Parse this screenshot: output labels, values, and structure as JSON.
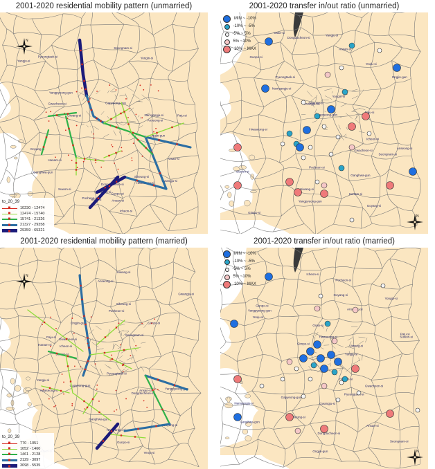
{
  "panels": {
    "tl": {
      "title": "2001-2020 residential mobility pattern (unmarried)",
      "legend": {
        "title": "to_20_39",
        "items": [
          {
            "label": "10230 - 12474",
            "color": "#d52a1f",
            "width": 1
          },
          {
            "label": "12474 - 15740",
            "color": "#8fdc3a",
            "width": 1.5
          },
          {
            "label": "15741 - 21326",
            "color": "#2fb24a",
            "width": 2.5
          },
          {
            "label": "21327 - 29358",
            "color": "#2c6ea3",
            "width": 3.5
          },
          {
            "label": "29359 - 65321",
            "color": "#1b1b7a",
            "width": 5
          }
        ]
      }
    },
    "tr": {
      "title": "2001-2020 transfer in/out ratio (unmarried)",
      "legend": [
        {
          "label": "MIN ~ -10%",
          "color": "#1f6fe0",
          "size": 11
        },
        {
          "label": "-10% ~ -5%",
          "color": "#2aa4c8",
          "size": 8
        },
        {
          "label": "-5% ~ 5%",
          "color": "#f4f4f4",
          "size": 6
        },
        {
          "label": "5% ~10%",
          "color": "#f5c7c7",
          "size": 8
        },
        {
          "label": "10% ~ MAX",
          "color": "#ef7a7a",
          "size": 11
        }
      ]
    },
    "bl": {
      "title": "2001-2020 residential mobility pattern (married)",
      "legend": {
        "title": "to_20_39",
        "items": [
          {
            "label": "770 - 1051",
            "color": "#d52a1f",
            "width": 1
          },
          {
            "label": "1052 - 1460",
            "color": "#8fdc3a",
            "width": 1.5
          },
          {
            "label": "1461 - 2128",
            "color": "#2fb24a",
            "width": 2.5
          },
          {
            "label": "2129 - 3097",
            "color": "#2c6ea3",
            "width": 3.5
          },
          {
            "label": "3098 - 5535",
            "color": "#1b1b7a",
            "width": 5
          }
        ]
      }
    },
    "br": {
      "title": "2001-2020 transfer in/out ratio (married)",
      "legend": [
        {
          "label": "MIN ~ -10%",
          "color": "#1f6fe0",
          "size": 11
        },
        {
          "label": "-10% ~ -5%",
          "color": "#2aa4c8",
          "size": 8
        },
        {
          "label": "-5% ~ 5%",
          "color": "#f4f4f4",
          "size": 6
        },
        {
          "label": "5% ~10%",
          "color": "#f5c7c7",
          "size": 8
        },
        {
          "label": "10% ~ MAX",
          "color": "#ef7a7a",
          "size": 11
        }
      ]
    }
  },
  "place_labels": [
    "Pocheon-si",
    "Dongducheon-si",
    "Gapyeong-gun",
    "Yangju-si",
    "Paju-si",
    "Ganghwa-gun",
    "Gimpo-si",
    "Goyang-si",
    "Namyangju-si",
    "Yangpyeong-gun",
    "Hanam-si",
    "Gwangju-si",
    "Yeoju-si",
    "Icheon-si",
    "Yongin-si",
    "Ansan-si",
    "Siheung-si",
    "Hwaseong-si",
    "Osan-si",
    "Anseong-si",
    "Pyeongtaek-si",
    "Ongjin-gun",
    "Gwacheon-si",
    "Uiwang-si",
    "Gunpo-si",
    "Suwon-si",
    "Seongnam-si"
  ],
  "compass": {
    "north": "N"
  },
  "colors": {
    "land": "#fbe6c1",
    "border": "#7a7a7a",
    "sea": "#ffffff",
    "dark_sea": "#3a3a3a"
  }
}
